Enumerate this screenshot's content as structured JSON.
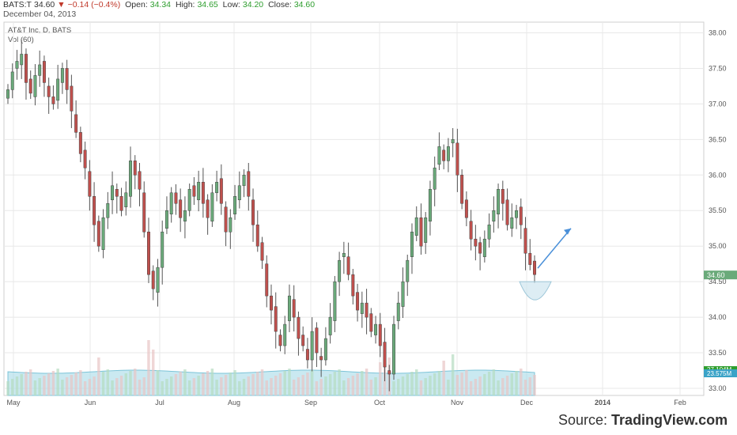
{
  "header": {
    "symbol": "BATS:T",
    "last": "34.60",
    "change": "−0.14 (−0.4%)",
    "open_label": "Open:",
    "open": "34.34",
    "high_label": "High:",
    "high": "34.65",
    "low_label": "Low:",
    "low": "34.20",
    "close_label": "Close:",
    "close": "34.60",
    "date": "December 04, 2013"
  },
  "legend": {
    "instrument": "AT&T Inc, D, BATS",
    "volume": "Vol (60)"
  },
  "source": {
    "prefix": "Source: ",
    "brand": "TradingView.com"
  },
  "colors": {
    "up_candle": "#6aaa7a",
    "down_candle": "#c0504d",
    "volume_up": "#b5dcc0",
    "volume_down": "#e8c4c4",
    "volume_ma_fill": "#a7dbe8",
    "arrow": "#4a90d9",
    "price_badge": "#6aaa7a",
    "volume_badge": "#2e9e2e",
    "grid": "#e8e8e8"
  },
  "chart_data": {
    "type": "candlestick",
    "title": "AT&T Inc, D, BATS",
    "y_range": [
      32.9,
      38.15
    ],
    "y_ticks": [
      "38.00",
      "37.50",
      "37.00",
      "36.50",
      "36.00",
      "35.50",
      "35.00",
      "34.50",
      "34.00",
      "33.50",
      "33.00"
    ],
    "x_ticks": [
      "May",
      "Jun",
      "Jul",
      "Aug",
      "Sep",
      "Oct",
      "Nov",
      "Dec",
      "2014",
      "Feb"
    ],
    "last_price_label": "34.60",
    "volume_labels": [
      "27.104M",
      "23.575M"
    ],
    "candles_close": [
      37.2,
      37.45,
      37.6,
      37.7,
      37.3,
      37.15,
      37.4,
      37.55,
      37.3,
      37.1,
      37.0,
      37.35,
      37.5,
      37.2,
      36.9,
      36.6,
      36.3,
      36.1,
      35.7,
      35.3,
      35.0,
      35.4,
      35.6,
      35.85,
      35.7,
      35.5,
      35.75,
      36.2,
      36.0,
      35.8,
      35.2,
      34.6,
      34.4,
      34.7,
      35.2,
      35.5,
      35.75,
      35.6,
      35.4,
      35.5,
      35.8,
      35.7,
      35.9,
      35.6,
      35.4,
      35.75,
      35.9,
      35.6,
      35.2,
      35.4,
      35.7,
      35.85,
      36.0,
      35.7,
      35.3,
      35.0,
      34.8,
      34.3,
      34.1,
      33.8,
      33.6,
      33.9,
      34.3,
      34.0,
      33.7,
      33.6,
      33.4,
      33.8,
      33.5,
      33.4,
      33.7,
      34.0,
      34.5,
      34.8,
      34.9,
      34.6,
      34.3,
      34.1,
      34.2,
      34.0,
      33.8,
      33.9,
      33.6,
      33.3,
      33.2,
      33.9,
      34.2,
      34.5,
      34.8,
      35.2,
      35.4,
      35.0,
      35.4,
      35.8,
      36.1,
      36.4,
      36.2,
      36.4,
      36.5,
      36.0,
      35.6,
      35.4,
      35.1,
      35.0,
      34.9,
      35.1,
      35.3,
      35.5,
      35.8,
      35.6,
      35.3,
      35.4,
      35.5,
      35.3,
      34.9,
      34.74,
      34.6
    ],
    "annotation": {
      "type": "arrow",
      "from_value": 34.6,
      "to_value": 35.25,
      "direction": "up"
    }
  }
}
